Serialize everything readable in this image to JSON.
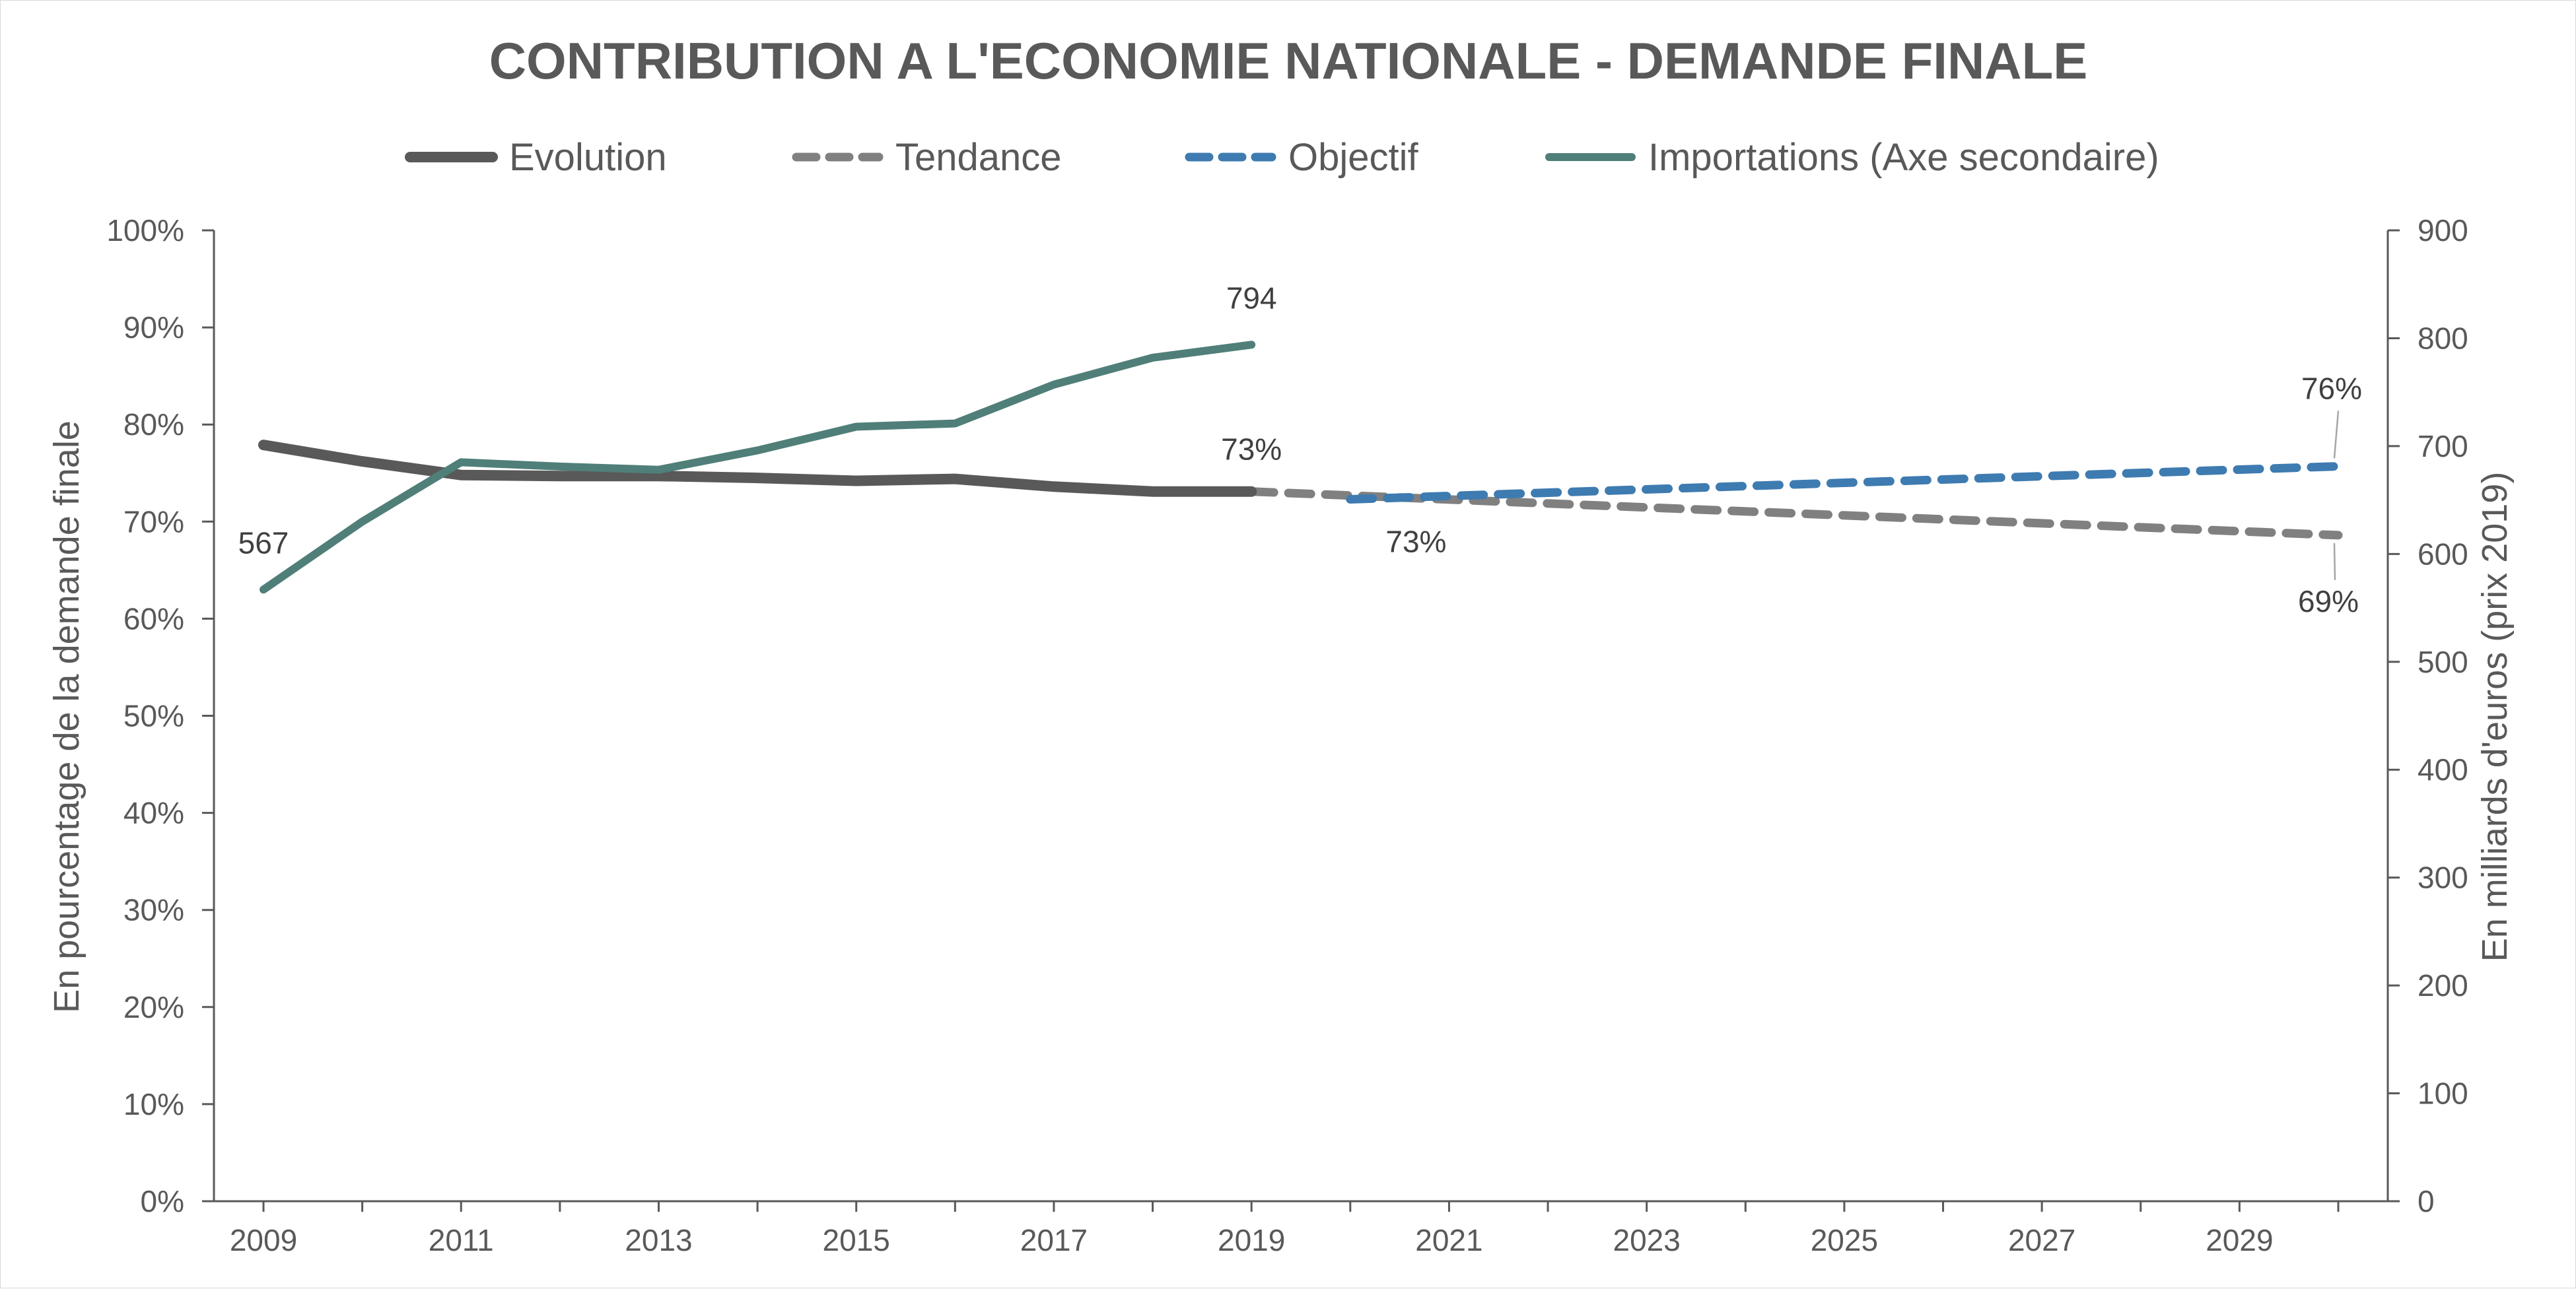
{
  "chart_data": {
    "type": "line",
    "title": "CONTRIBUTION A L'ECONOMIE NATIONALE - DEMANDE FINALE",
    "ylabel_left": "En pourcentage de la demande finale",
    "ylabel_right": "En milliards d'euros (prix 2019)",
    "legend_position": "top",
    "grid": false,
    "x_range": [
      2009,
      2030
    ],
    "x_tick_labels": [
      "2009",
      "2011",
      "2013",
      "2015",
      "2017",
      "2019",
      "2021",
      "2023",
      "2025",
      "2027",
      "2029"
    ],
    "y_left": {
      "range": [
        0,
        100
      ],
      "tick_labels": [
        "0%",
        "10%",
        "20%",
        "30%",
        "40%",
        "50%",
        "60%",
        "70%",
        "80%",
        "90%",
        "100%"
      ]
    },
    "y_right": {
      "range": [
        0,
        900
      ],
      "tick_labels": [
        "0",
        "100",
        "200",
        "300",
        "400",
        "500",
        "600",
        "700",
        "800",
        "900"
      ]
    },
    "series": [
      {
        "name": "Evolution",
        "axis": "left",
        "style": "solid-thick",
        "color": "#595959",
        "x": [
          2009,
          2010,
          2011,
          2012,
          2013,
          2014,
          2015,
          2016,
          2017,
          2018,
          2019
        ],
        "y": [
          77.9,
          76.2,
          74.8,
          74.7,
          74.7,
          74.5,
          74.2,
          74.4,
          73.6,
          73.1,
          73.1
        ]
      },
      {
        "name": "Tendance",
        "axis": "left",
        "style": "dashed",
        "color": "#808080",
        "x": [
          2019,
          2030
        ],
        "y": [
          73.1,
          68.6
        ]
      },
      {
        "name": "Objectif",
        "axis": "left",
        "style": "dashed",
        "color": "#3e7bb0",
        "x": [
          2020,
          2030
        ],
        "y": [
          72.3,
          75.7
        ]
      },
      {
        "name": "Importations (Axe secondaire)",
        "axis": "right",
        "style": "solid",
        "color": "#4f7f78",
        "x": [
          2009,
          2010,
          2011,
          2012,
          2013,
          2014,
          2015,
          2016,
          2017,
          2018,
          2019
        ],
        "y": [
          567,
          630,
          685,
          681,
          678,
          696,
          718,
          721,
          757,
          782,
          794
        ]
      }
    ],
    "annotations": [
      {
        "text": "567",
        "series": "Importations (Axe secondaire)",
        "x": 2009
      },
      {
        "text": "794",
        "series": "Importations (Axe secondaire)",
        "x": 2019
      },
      {
        "text": "73%",
        "series": "Evolution",
        "x": 2019
      },
      {
        "text": "73%",
        "series": "Tendance",
        "x": 2021
      },
      {
        "text": "76%",
        "series": "Objectif",
        "x": 2030
      },
      {
        "text": "69%",
        "series": "Tendance",
        "x": 2030
      }
    ]
  }
}
